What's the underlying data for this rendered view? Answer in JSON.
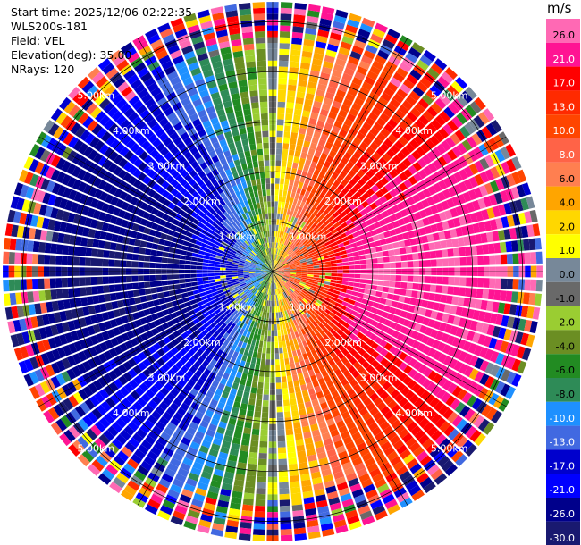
{
  "header": {
    "start_time": "Start time: 2025/12/06 02:22:35",
    "instrument": "WLS200s-181",
    "field": "Field: VEL",
    "elevation": "Elevation(deg): 35.00",
    "nrays": "NRays: 120"
  },
  "colorbar": {
    "unit": "m/s",
    "ticks": [
      "26.0",
      "21.0",
      "17.0",
      "13.0",
      "10.0",
      "8.0",
      "6.0",
      "4.0",
      "2.0",
      "1.0",
      "0.0",
      "-1.0",
      "-2.0",
      "-4.0",
      "-6.0",
      "-8.0",
      "-10.0",
      "-13.0",
      "-17.0",
      "-21.0",
      "-26.0",
      "-30.0"
    ],
    "bins": [
      {
        "min": 26,
        "max": 30,
        "color": "#ff69b4"
      },
      {
        "min": 21,
        "max": 26,
        "color": "#ff1493"
      },
      {
        "min": 17,
        "max": 21,
        "color": "#ff0000"
      },
      {
        "min": 13,
        "max": 17,
        "color": "#ff2a00"
      },
      {
        "min": 10,
        "max": 13,
        "color": "#ff4500"
      },
      {
        "min": 8,
        "max": 10,
        "color": "#ff6347"
      },
      {
        "min": 6,
        "max": 8,
        "color": "#ff7f50"
      },
      {
        "min": 4,
        "max": 6,
        "color": "#ffa500"
      },
      {
        "min": 2,
        "max": 4,
        "color": "#ffd700"
      },
      {
        "min": 1,
        "max": 2,
        "color": "#ffff00"
      },
      {
        "min": 0,
        "max": 1,
        "color": "#778899"
      },
      {
        "min": -1,
        "max": 0,
        "color": "#696969"
      },
      {
        "min": -2,
        "max": -1,
        "color": "#9acd32"
      },
      {
        "min": -4,
        "max": -2,
        "color": "#6b8e23"
      },
      {
        "min": -6,
        "max": -4,
        "color": "#228b22"
      },
      {
        "min": -8,
        "max": -6,
        "color": "#2e8b57"
      },
      {
        "min": -10,
        "max": -8,
        "color": "#1e90ff"
      },
      {
        "min": -13,
        "max": -10,
        "color": "#4169e1"
      },
      {
        "min": -17,
        "max": -13,
        "color": "#0000cd"
      },
      {
        "min": -21,
        "max": -17,
        "color": "#0000ff"
      },
      {
        "min": -26,
        "max": -21,
        "color": "#00008b"
      },
      {
        "min": -30,
        "max": -26,
        "color": "#191970"
      }
    ]
  },
  "chart_data": {
    "type": "ppi",
    "field": "VEL",
    "nrays": 120,
    "max_range_km": 5.4,
    "range_ring_labels": [
      "1.00km",
      "2.00km",
      "3.00km",
      "4.00km",
      "5.00km"
    ],
    "range_rings_km": [
      1,
      2,
      3,
      4,
      5
    ],
    "value_range": [
      -30,
      30
    ],
    "wind_pattern": {
      "approaching_direction": "west (negative, blue)",
      "receding_direction": "east (positive, red/pink)",
      "near_zero_bands": "north and south"
    }
  }
}
